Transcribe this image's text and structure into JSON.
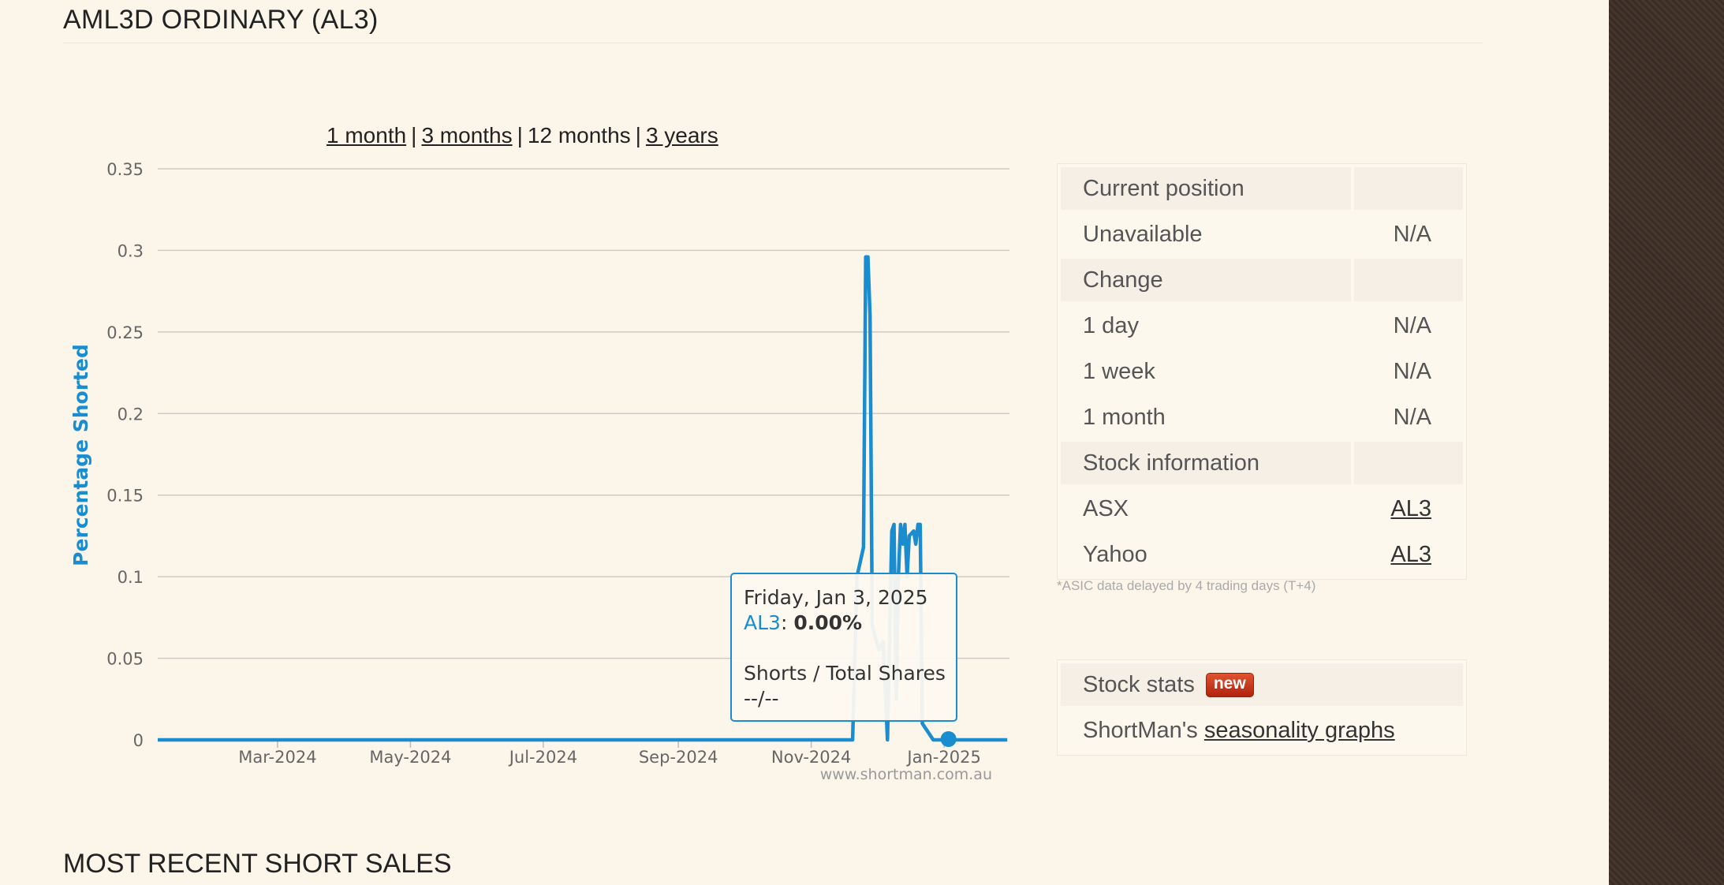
{
  "page": {
    "title": "AML3D ORDINARY (AL3)"
  },
  "range_selector": {
    "one_month": "1 month",
    "three_months": "3 months",
    "twelve_months": "12 months",
    "three_years": "3 years",
    "separator": "|"
  },
  "chart_data": {
    "type": "line",
    "ylabel": "Percentage Shorted",
    "ylim": [
      0,
      0.35
    ],
    "yticks": [
      "0",
      "0.05",
      "0.1",
      "0.15",
      "0.2",
      "0.25",
      "0.3",
      "0.35"
    ],
    "xlim": [
      "2024-01-06",
      "2025-01-31"
    ],
    "xticks": [
      {
        "date": "2024-03-01",
        "label": "Mar-2024"
      },
      {
        "date": "2024-05-01",
        "label": "May-2024"
      },
      {
        "date": "2024-07-01",
        "label": "Jul-2024"
      },
      {
        "date": "2024-09-01",
        "label": "Sep-2024"
      },
      {
        "date": "2024-11-01",
        "label": "Nov-2024"
      },
      {
        "date": "2025-01-01",
        "label": "Jan-2025"
      }
    ],
    "grid": true,
    "legend": "none",
    "color": "#1a8dd0",
    "credit": "www.shortman.com.au",
    "series": [
      {
        "name": "AL3",
        "points": [
          [
            "2024-01-06",
            0
          ],
          [
            "2024-11-20",
            0
          ],
          [
            "2024-11-22",
            0.1
          ],
          [
            "2024-11-25",
            0.118
          ],
          [
            "2024-11-26",
            0.296
          ],
          [
            "2024-11-27",
            0.296
          ],
          [
            "2024-11-28",
            0.26
          ],
          [
            "2024-11-29",
            0.07
          ],
          [
            "2024-12-02",
            0.055
          ],
          [
            "2024-12-04",
            0.06
          ],
          [
            "2024-12-06",
            0.0
          ],
          [
            "2024-12-08",
            0.128
          ],
          [
            "2024-12-09",
            0.132
          ],
          [
            "2024-12-10",
            0.025
          ],
          [
            "2024-12-11",
            0.1
          ],
          [
            "2024-12-12",
            0.132
          ],
          [
            "2024-12-13",
            0.12
          ],
          [
            "2024-12-14",
            0.132
          ],
          [
            "2024-12-15",
            0.1
          ],
          [
            "2024-12-16",
            0.125
          ],
          [
            "2024-12-18",
            0.128
          ],
          [
            "2024-12-19",
            0.12
          ],
          [
            "2024-12-20",
            0.132
          ],
          [
            "2024-12-21",
            0.132
          ],
          [
            "2024-12-22",
            0.01
          ],
          [
            "2024-12-26",
            0.002
          ],
          [
            "2024-12-27",
            0
          ],
          [
            "2025-01-03",
            0
          ],
          [
            "2025-01-30",
            0
          ]
        ]
      }
    ],
    "highlight": {
      "date": "2025-01-03",
      "value": 0
    }
  },
  "tooltip": {
    "date": "Friday, Jan 3, 2025",
    "series": "AL3",
    "colon": ":",
    "value": "0.00%",
    "subtitle": "Shorts / Total Shares",
    "subvalue": "--/--"
  },
  "info_table": {
    "current_position": "Current position",
    "unavailable": "Unavailable",
    "unavailable_value": "N/A",
    "change": "Change",
    "rows": [
      {
        "label": "1 day",
        "value": "N/A"
      },
      {
        "label": "1 week",
        "value": "N/A"
      },
      {
        "label": "1 month",
        "value": "N/A"
      }
    ],
    "stock_information": "Stock information",
    "asx_label": "ASX",
    "asx_link": "AL3",
    "yahoo_label": "Yahoo",
    "yahoo_link": "AL3"
  },
  "asic_note": "*ASIC data delayed by 4 trading days (T+4)",
  "stats": {
    "title": "Stock stats",
    "badge": "new",
    "seasonality_prefix": "ShortMan's",
    "seasonality_link": "seasonality graphs"
  },
  "recent_sales": {
    "title": "MOST RECENT SHORT SALES"
  }
}
